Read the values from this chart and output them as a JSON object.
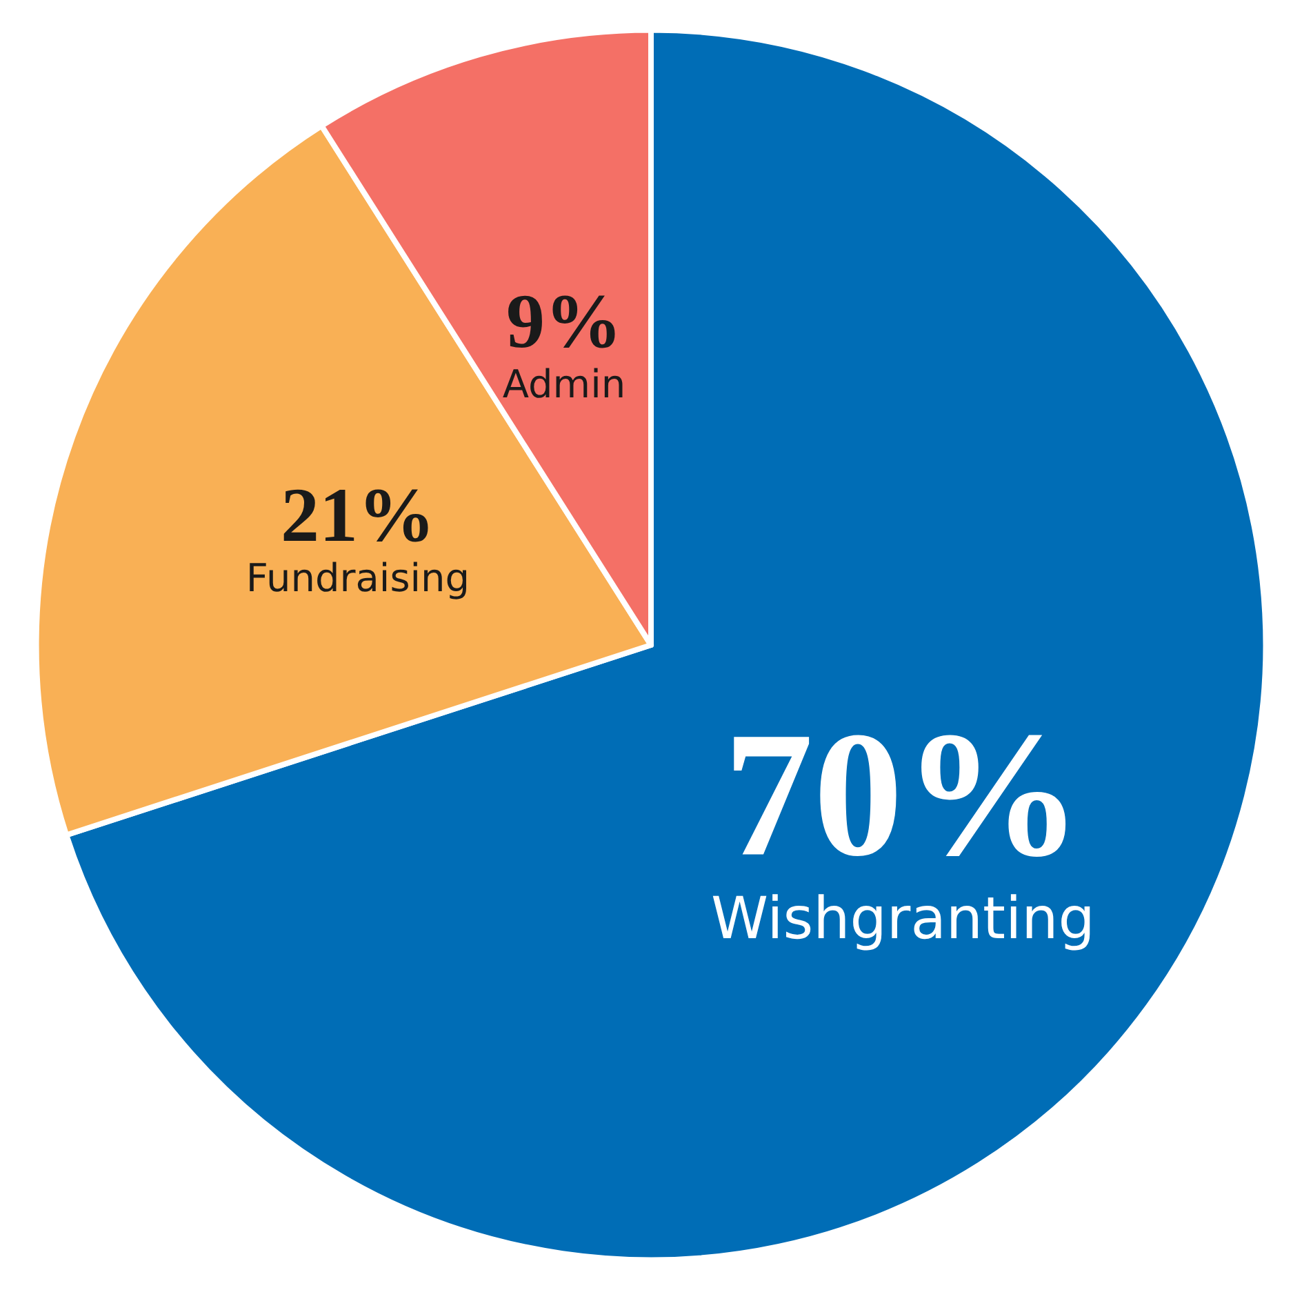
{
  "chart_data": {
    "type": "pie",
    "categories": [
      "Wishgranting",
      "Fundraising",
      "Admin"
    ],
    "values": [
      70,
      21,
      9
    ],
    "colors": [
      "#006db6",
      "#f9b055",
      "#f47066"
    ],
    "value_labels": [
      "70%",
      "21%",
      "9%"
    ],
    "legend": false
  }
}
